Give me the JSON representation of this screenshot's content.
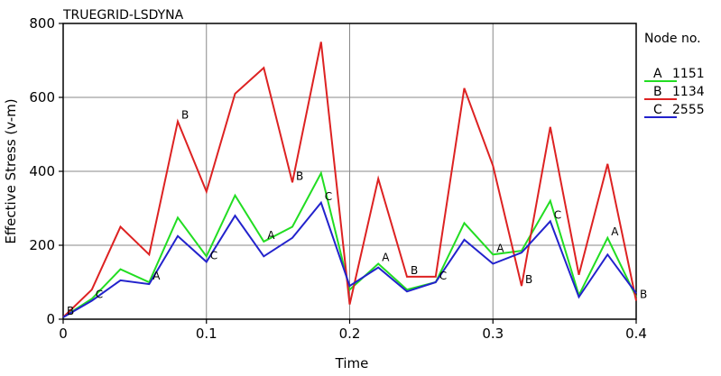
{
  "chart_data": {
    "type": "line",
    "title": "TRUEGRID-LSDYNA",
    "xlabel": "Time",
    "ylabel": "Effective Stress (v-m)",
    "xlim": [
      0,
      0.4
    ],
    "ylim": [
      0,
      800
    ],
    "xticks": [
      "0",
      "0.1",
      "0.2",
      "0.3",
      "0.4"
    ],
    "yticks": [
      "0",
      "200",
      "400",
      "600",
      "800"
    ],
    "grid": true,
    "legend_title": "Node no.",
    "legend_position": "right",
    "x": [
      0,
      0.02,
      0.04,
      0.06,
      0.08,
      0.1,
      0.12,
      0.14,
      0.16,
      0.18,
      0.2,
      0.22,
      0.24,
      0.26,
      0.28,
      0.3,
      0.32,
      0.34,
      0.36,
      0.38,
      0.4
    ],
    "series": [
      {
        "name": "1151",
        "marker": "A",
        "color": "#22dd22",
        "values": [
          5,
          55,
          135,
          100,
          275,
          170,
          335,
          210,
          250,
          395,
          80,
          150,
          80,
          100,
          260,
          175,
          185,
          320,
          65,
          220,
          60
        ],
        "marker_points": [
          [
            0.06,
            100
          ],
          [
            0.14,
            210
          ],
          [
            0.22,
            150
          ],
          [
            0.3,
            175
          ],
          [
            0.38,
            220
          ]
        ]
      },
      {
        "name": "1134",
        "marker": "B",
        "color": "#dd2222",
        "values": [
          5,
          80,
          250,
          175,
          535,
          345,
          610,
          680,
          370,
          750,
          40,
          380,
          115,
          115,
          625,
          415,
          90,
          520,
          120,
          420,
          50
        ],
        "marker_points": [
          [
            0.0,
            5
          ],
          [
            0.08,
            535
          ],
          [
            0.16,
            370
          ],
          [
            0.24,
            115
          ],
          [
            0.32,
            90
          ],
          [
            0.4,
            50
          ]
        ]
      },
      {
        "name": "2555",
        "marker": "C",
        "color": "#2222cc",
        "values": [
          5,
          50,
          105,
          95,
          225,
          155,
          280,
          170,
          220,
          315,
          90,
          140,
          75,
          100,
          215,
          150,
          180,
          265,
          60,
          175,
          70
        ],
        "marker_points": [
          [
            0.02,
            50
          ],
          [
            0.1,
            155
          ],
          [
            0.18,
            315
          ],
          [
            0.26,
            100
          ],
          [
            0.34,
            265
          ]
        ]
      }
    ]
  }
}
